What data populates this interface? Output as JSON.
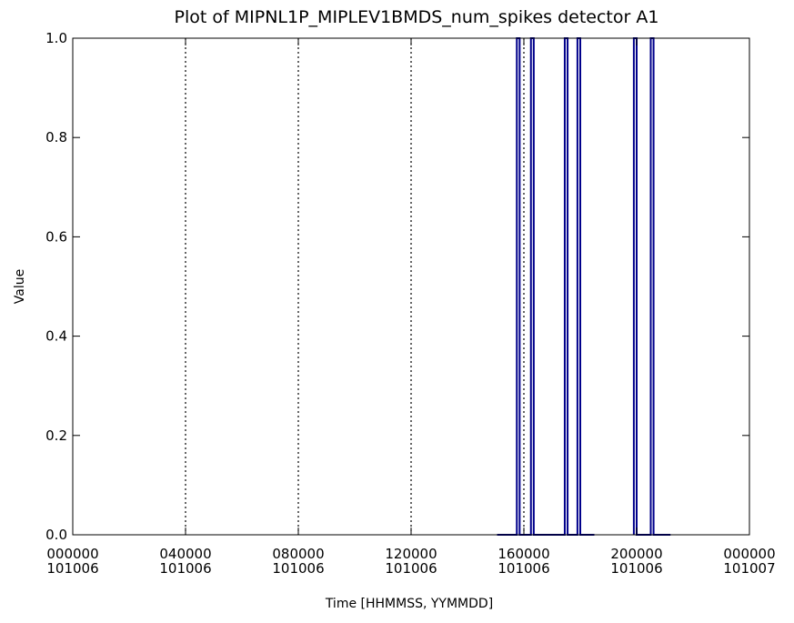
{
  "chart_data": {
    "type": "line",
    "title": "Plot of MIPNL1P_MIPLEV1BMDS_num_spikes detector A1",
    "xlabel": "Time [HHMMSS, YYMMDD]",
    "ylabel": "Value",
    "ylim": [
      0.0,
      1.0
    ],
    "xlim_hours": [
      0,
      24
    ],
    "y_ticks": [
      "0.0",
      "0.2",
      "0.4",
      "0.6",
      "0.8",
      "1.0"
    ],
    "x_ticks": [
      {
        "hour": 0,
        "time": "000000",
        "date": "101006"
      },
      {
        "hour": 4,
        "time": "040000",
        "date": "101006"
      },
      {
        "hour": 8,
        "time": "080000",
        "date": "101006"
      },
      {
        "hour": 12,
        "time": "120000",
        "date": "101006"
      },
      {
        "hour": 16,
        "time": "160000",
        "date": "101006"
      },
      {
        "hour": 20,
        "time": "200000",
        "date": "101006"
      },
      {
        "hour": 24,
        "time": "000000",
        "date": "101007"
      }
    ],
    "reference_lines_hours": [
      4.0,
      8.0,
      12.0,
      16.0,
      20.0
    ],
    "grid": false,
    "colors": {
      "series": "#00008b",
      "reference": "#000000",
      "axes": "#000000"
    },
    "series": [
      {
        "x_hours": [
          15.05,
          15.75,
          15.75,
          15.85,
          15.85,
          16.25,
          16.25,
          16.35,
          16.35,
          17.45,
          17.45,
          17.55,
          17.55,
          17.9,
          17.9,
          18.0,
          18.0,
          18.5
        ],
        "values": [
          0,
          0,
          1,
          1,
          0,
          0,
          1,
          1,
          0,
          0,
          1,
          1,
          0,
          0,
          1,
          1,
          0,
          0
        ]
      },
      {
        "x_hours": [
          19.9,
          19.9,
          20.0,
          20.0,
          20.5,
          20.5,
          20.6,
          20.6,
          21.2
        ],
        "values": [
          0,
          1,
          1,
          0,
          0,
          1,
          1,
          0,
          0
        ]
      }
    ]
  }
}
